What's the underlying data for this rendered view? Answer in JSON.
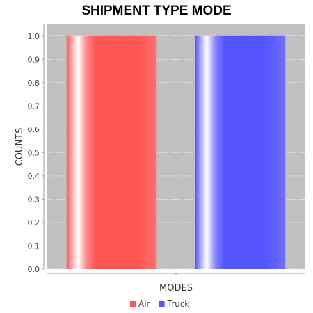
{
  "chart_data": {
    "type": "bar",
    "title": "SHIPMENT TYPE MODE",
    "xlabel": "MODES",
    "ylabel": "COUNTS",
    "ylim": [
      0,
      1.05
    ],
    "yticks": [
      "0.0",
      "0.1",
      "0.2",
      "0.3",
      "0.4",
      "0.5",
      "0.6",
      "0.7",
      "0.8",
      "0.9",
      "1.0"
    ],
    "grid": true,
    "legend_placement": "bottom",
    "series": [
      {
        "name": "Air",
        "values": [
          1.0
        ],
        "color": "#ff5555"
      },
      {
        "name": "Truck",
        "values": [
          1.0
        ],
        "color": "#5555ff"
      }
    ],
    "plot_background": "#c0c0c0"
  }
}
